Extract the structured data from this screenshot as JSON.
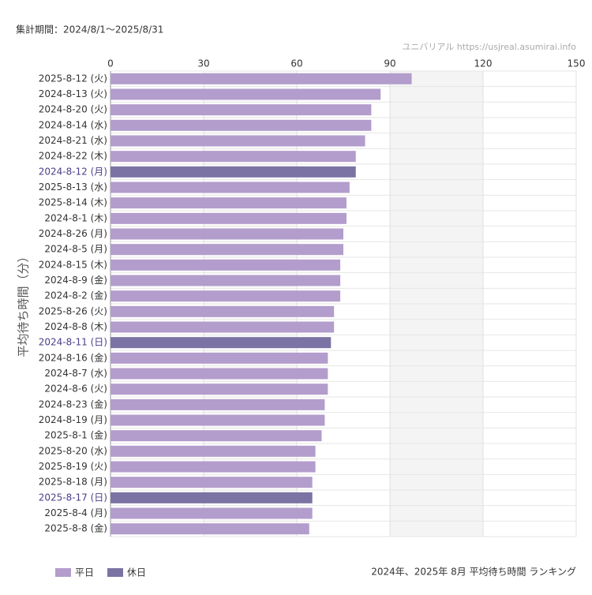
{
  "chart_data": {
    "type": "bar",
    "period": "集計期間：2024/8/1〜2025/8/31",
    "source": "ユニバリアル  https://usjreal.asumirai.info",
    "ylabel": "平均待ち時間（分）",
    "footer": "2024年、2025年 8月 平均待ち時間 ランキング",
    "categories": [
      "2025-8-12 (火)",
      "2024-8-13 (火)",
      "2024-8-20 (火)",
      "2024-8-14 (水)",
      "2024-8-21 (水)",
      "2024-8-22 (木)",
      "2024-8-12 (月)",
      "2025-8-13 (水)",
      "2025-8-14 (木)",
      "2024-8-1 (木)",
      "2024-8-26 (月)",
      "2024-8-5 (月)",
      "2024-8-15 (木)",
      "2024-8-9 (金)",
      "2024-8-2 (金)",
      "2025-8-26 (火)",
      "2024-8-8 (木)",
      "2024-8-11 (日)",
      "2024-8-16 (金)",
      "2024-8-7 (水)",
      "2024-8-6 (火)",
      "2024-8-23 (金)",
      "2024-8-19 (月)",
      "2025-8-1 (金)",
      "2025-8-20 (水)",
      "2025-8-19 (火)",
      "2025-8-18 (月)",
      "2025-8-17 (日)",
      "2025-8-4 (月)",
      "2025-8-8 (金)"
    ],
    "series": [
      {
        "name": "平日",
        "color": "#b39dcc",
        "values": [
          97,
          87,
          84,
          84,
          82,
          79,
          null,
          77,
          76,
          76,
          75,
          75,
          74,
          74,
          74,
          72,
          72,
          null,
          70,
          70,
          70,
          69,
          69,
          68,
          66,
          66,
          65,
          null,
          65,
          64
        ]
      },
      {
        "name": "休日",
        "color": "#7b73a3",
        "values": [
          null,
          null,
          null,
          null,
          null,
          null,
          79,
          null,
          null,
          null,
          null,
          null,
          null,
          null,
          null,
          null,
          null,
          71,
          null,
          null,
          null,
          null,
          null,
          null,
          null,
          null,
          null,
          65,
          null,
          null
        ]
      }
    ],
    "xlim": [
      0,
      150
    ],
    "xticks": [
      0,
      30,
      60,
      90,
      120,
      150
    ],
    "grid": true
  }
}
